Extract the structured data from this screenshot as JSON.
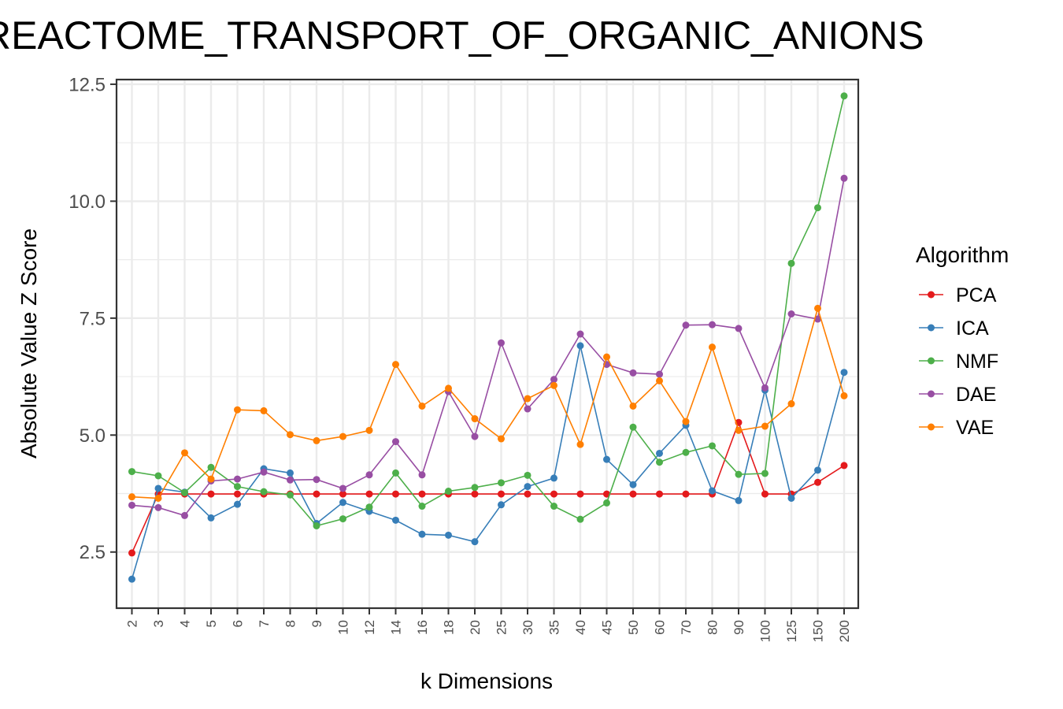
{
  "chart_data": {
    "type": "line",
    "title": "REACTOME_TRANSPORT_OF_ORGANIC_ANIONS",
    "xlabel": "k Dimensions",
    "ylabel": "Absolute Value Z Score",
    "categories": [
      "2",
      "3",
      "4",
      "5",
      "6",
      "7",
      "8",
      "9",
      "10",
      "12",
      "14",
      "16",
      "18",
      "20",
      "25",
      "30",
      "35",
      "40",
      "45",
      "50",
      "60",
      "70",
      "80",
      "90",
      "100",
      "125",
      "150",
      "200"
    ],
    "ylim": [
      1.3,
      12.6
    ],
    "yticks": [
      "2.5",
      "5.0",
      "7.5",
      "10.0",
      "12.5"
    ],
    "ytick_values": [
      2.5,
      5.0,
      7.5,
      10.0,
      12.5
    ],
    "grid": true,
    "legend": {
      "title": "Algorithm",
      "position": "right"
    },
    "series": [
      {
        "name": "PCA",
        "color": "#e41a1c",
        "values": [
          2.48,
          3.74,
          3.74,
          3.74,
          3.74,
          3.74,
          3.74,
          3.74,
          3.74,
          3.74,
          3.74,
          3.74,
          3.74,
          3.74,
          3.74,
          3.74,
          3.74,
          3.74,
          3.74,
          3.74,
          3.74,
          3.74,
          3.74,
          5.27,
          3.74,
          3.74,
          3.99,
          4.35
        ]
      },
      {
        "name": "ICA",
        "color": "#377eb8",
        "values": [
          1.92,
          3.86,
          3.78,
          3.23,
          3.52,
          4.28,
          4.19,
          3.11,
          3.56,
          3.37,
          3.18,
          2.88,
          2.86,
          2.72,
          3.51,
          3.9,
          4.08,
          6.91,
          4.48,
          3.94,
          4.61,
          5.21,
          3.81,
          3.6,
          5.96,
          3.65,
          4.25,
          6.34
        ]
      },
      {
        "name": "NMF",
        "color": "#4daf4a",
        "values": [
          4.22,
          4.13,
          3.77,
          4.31,
          3.9,
          3.79,
          3.72,
          3.06,
          3.21,
          3.46,
          4.19,
          3.48,
          3.8,
          3.88,
          3.98,
          4.14,
          3.48,
          3.2,
          3.55,
          5.17,
          4.42,
          4.63,
          4.77,
          4.16,
          4.18,
          8.67,
          9.86,
          12.25
        ]
      },
      {
        "name": "DAE",
        "color": "#984ea3",
        "values": [
          3.5,
          3.45,
          3.28,
          4.02,
          4.06,
          4.21,
          4.04,
          4.05,
          3.86,
          4.15,
          4.86,
          4.15,
          5.93,
          4.97,
          6.97,
          5.56,
          6.19,
          7.16,
          6.51,
          6.33,
          6.3,
          7.35,
          7.36,
          7.28,
          6.01,
          7.59,
          7.48,
          10.49
        ]
      },
      {
        "name": "VAE",
        "color": "#ff7f00",
        "values": [
          3.68,
          3.65,
          4.62,
          4.06,
          5.54,
          5.52,
          5.01,
          4.88,
          4.97,
          5.1,
          6.51,
          5.62,
          6.0,
          5.35,
          4.92,
          5.78,
          6.06,
          4.8,
          6.67,
          5.62,
          6.16,
          5.29,
          6.88,
          5.1,
          5.19,
          5.67,
          7.71,
          5.84
        ]
      }
    ]
  }
}
